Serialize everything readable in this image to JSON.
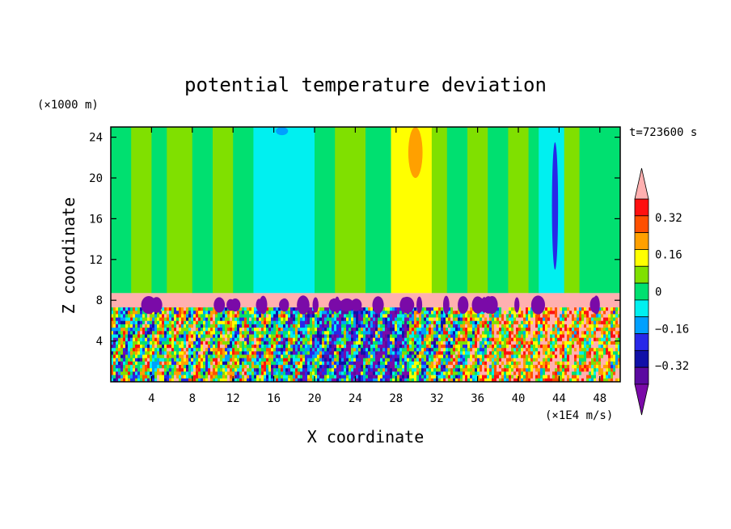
{
  "chart_data": {
    "type": "heatmap",
    "title": "potential temperature deviation",
    "xlabel": "X coordinate",
    "ylabel": "Z coordinate",
    "x_unit": "(×1E4 m/s)",
    "y_unit": "(×1000 m)",
    "time_label": "t=723600 s",
    "xlim": [
      0,
      50
    ],
    "ylim": [
      0,
      25
    ],
    "x_ticks": [
      4,
      8,
      12,
      16,
      20,
      24,
      28,
      32,
      36,
      40,
      44,
      48
    ],
    "y_ticks": [
      4,
      8,
      12,
      16,
      20,
      24
    ],
    "colorbar": {
      "levels": [
        -0.48,
        -0.4,
        -0.32,
        -0.24,
        -0.16,
        -0.08,
        0,
        0.08,
        0.16,
        0.24,
        0.32,
        0.4,
        0.48
      ],
      "tick_labels": [
        "0.32",
        "0.16",
        "0",
        "−0.16",
        "−0.32"
      ],
      "tick_values": [
        0.32,
        0.16,
        0,
        -0.16,
        -0.32
      ],
      "colors": [
        "#7a0aa8",
        "#5a0aa0",
        "#1010a8",
        "#2828e8",
        "#00a0ff",
        "#00f0f0",
        "#00e070",
        "#80e000",
        "#ffff00",
        "#ffa000",
        "#ff5000",
        "#ff1010",
        "#ffb0b0"
      ],
      "under_color": "#7a0aa8",
      "over_color": "#ffb0b0"
    },
    "upper_bands": [
      {
        "x": [
          0,
          2
        ],
        "level": 0
      },
      {
        "x": [
          2,
          4
        ],
        "level": 0.08
      },
      {
        "x": [
          4,
          5.5
        ],
        "level": 0
      },
      {
        "x": [
          5.5,
          8
        ],
        "level": 0.08
      },
      {
        "x": [
          8,
          10
        ],
        "level": 0
      },
      {
        "x": [
          10,
          12
        ],
        "level": 0.08
      },
      {
        "x": [
          12,
          14
        ],
        "level": 0
      },
      {
        "x": [
          14,
          18
        ],
        "level": -0.08
      },
      {
        "x": [
          18,
          20
        ],
        "level": -0.08
      },
      {
        "x": [
          20,
          22
        ],
        "level": 0
      },
      {
        "x": [
          22,
          25
        ],
        "level": 0.08
      },
      {
        "x": [
          25,
          27.5
        ],
        "level": 0
      },
      {
        "x": [
          27.5,
          31.5
        ],
        "level": 0.16
      },
      {
        "x": [
          31.5,
          33
        ],
        "level": 0.08
      },
      {
        "x": [
          33,
          35
        ],
        "level": 0
      },
      {
        "x": [
          35,
          37
        ],
        "level": 0.08
      },
      {
        "x": [
          37,
          39
        ],
        "level": 0
      },
      {
        "x": [
          39,
          41
        ],
        "level": 0.08
      },
      {
        "x": [
          41,
          42
        ],
        "level": 0
      },
      {
        "x": [
          42,
          44.5
        ],
        "level": -0.08
      },
      {
        "x": [
          44.5,
          46
        ],
        "level": 0.08
      },
      {
        "x": [
          46,
          50
        ],
        "level": 0
      }
    ],
    "features": [
      {
        "name": "warm-core",
        "x": [
          29.2,
          30.6
        ],
        "z": [
          20,
          25
        ],
        "level": 0.24
      },
      {
        "name": "cold-streak",
        "x": [
          43.3,
          43.9
        ],
        "z": [
          11,
          23.5
        ],
        "level": -0.24
      },
      {
        "name": "cold-top",
        "x": [
          16.2,
          17.4
        ],
        "z": [
          24.2,
          25
        ],
        "level": -0.16
      }
    ],
    "inversion_layer": {
      "z": [
        7.3,
        8.7
      ],
      "level": 0.48
    },
    "convective_layer": {
      "z": [
        0,
        7.3
      ],
      "levels_min": -0.48,
      "levels_max": 0.48
    }
  }
}
